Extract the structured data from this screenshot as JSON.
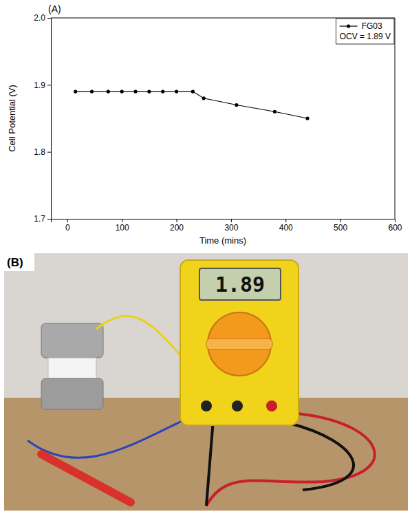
{
  "chart_data": {
    "type": "line",
    "panel_label": "(A)",
    "x_label": "Time (mins)",
    "y_label": "Cell Potential (V)",
    "x": [
      15,
      45,
      75,
      100,
      125,
      150,
      175,
      200,
      230,
      250,
      310,
      380,
      440
    ],
    "series": [
      {
        "name": "FG03",
        "color": "#000000",
        "marker": "circle",
        "line_style": "solid",
        "values": [
          1.89,
          1.89,
          1.89,
          1.89,
          1.89,
          1.89,
          1.89,
          1.89,
          1.89,
          1.88,
          1.87,
          1.86,
          1.85
        ]
      }
    ],
    "annotations": [
      "OCV = 1.89 V"
    ],
    "xlim": [
      -30,
      600
    ],
    "ylim": [
      1.7,
      2.0
    ],
    "xticks": [
      0,
      100,
      200,
      300,
      400,
      500,
      600
    ],
    "yticks": [
      1.7,
      1.8,
      1.9,
      {
        "value": 2.0,
        "label": "2.0"
      }
    ],
    "grid": false,
    "legend": "upper right"
  },
  "photo": {
    "label": "(B)",
    "display": "1.89"
  }
}
